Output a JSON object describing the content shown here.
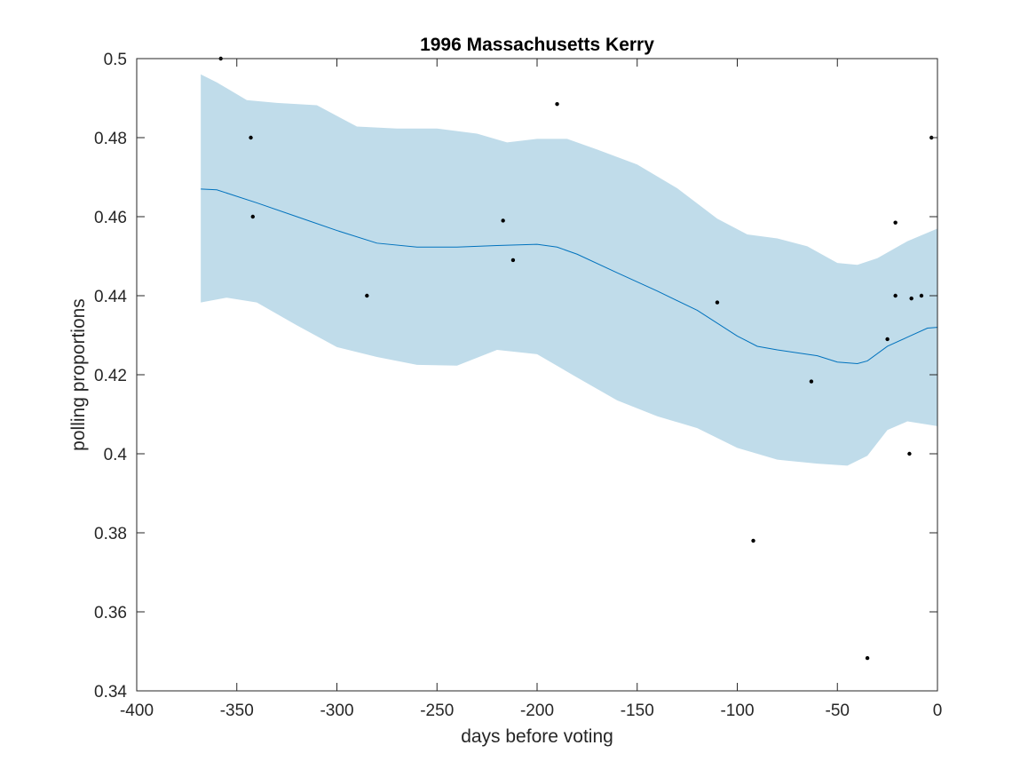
{
  "chart_data": {
    "type": "scatter",
    "title": "1996 Massachusetts Kerry",
    "xlabel": "days before voting",
    "ylabel": "polling proportions",
    "xlim": [
      -400,
      0
    ],
    "ylim": [
      0.34,
      0.5
    ],
    "xticks": [
      -400,
      -350,
      -300,
      -250,
      -200,
      -150,
      -100,
      -50,
      0
    ],
    "yticks": [
      0.34,
      0.36,
      0.38,
      0.4,
      0.42,
      0.44,
      0.46,
      0.48,
      0.5
    ],
    "grid": false,
    "legend": "none",
    "colors": {
      "band": "#c0dcea",
      "line": "#0072bd",
      "points": "#000000",
      "axes": "#262626"
    },
    "points": [
      {
        "x": -358,
        "y": 0.5
      },
      {
        "x": -343,
        "y": 0.48
      },
      {
        "x": -342,
        "y": 0.46
      },
      {
        "x": -285,
        "y": 0.44
      },
      {
        "x": -217,
        "y": 0.459
      },
      {
        "x": -212,
        "y": 0.449
      },
      {
        "x": -190,
        "y": 0.4885
      },
      {
        "x": -110,
        "y": 0.4383
      },
      {
        "x": -92,
        "y": 0.378
      },
      {
        "x": -63,
        "y": 0.4183
      },
      {
        "x": -35,
        "y": 0.3483
      },
      {
        "x": -25,
        "y": 0.429
      },
      {
        "x": -21,
        "y": 0.4585
      },
      {
        "x": -21,
        "y": 0.44
      },
      {
        "x": -14,
        "y": 0.4
      },
      {
        "x": -13,
        "y": 0.4393
      },
      {
        "x": -8,
        "y": 0.44
      },
      {
        "x": -3,
        "y": 0.48
      }
    ],
    "fit_line": [
      {
        "x": -368,
        "y": 0.467
      },
      {
        "x": -360,
        "y": 0.4668
      },
      {
        "x": -340,
        "y": 0.4635
      },
      {
        "x": -320,
        "y": 0.46
      },
      {
        "x": -300,
        "y": 0.4565
      },
      {
        "x": -280,
        "y": 0.4533
      },
      {
        "x": -260,
        "y": 0.4523
      },
      {
        "x": -240,
        "y": 0.4523
      },
      {
        "x": -220,
        "y": 0.4527
      },
      {
        "x": -200,
        "y": 0.453
      },
      {
        "x": -190,
        "y": 0.4523
      },
      {
        "x": -180,
        "y": 0.4505
      },
      {
        "x": -160,
        "y": 0.4458
      },
      {
        "x": -140,
        "y": 0.4412
      },
      {
        "x": -120,
        "y": 0.4363
      },
      {
        "x": -100,
        "y": 0.4298
      },
      {
        "x": -90,
        "y": 0.4272
      },
      {
        "x": -80,
        "y": 0.4263
      },
      {
        "x": -60,
        "y": 0.4248
      },
      {
        "x": -50,
        "y": 0.4232
      },
      {
        "x": -40,
        "y": 0.4228
      },
      {
        "x": -35,
        "y": 0.4235
      },
      {
        "x": -25,
        "y": 0.4272
      },
      {
        "x": -15,
        "y": 0.4295
      },
      {
        "x": -5,
        "y": 0.4318
      },
      {
        "x": 0,
        "y": 0.432
      }
    ],
    "band_upper": [
      {
        "x": -368,
        "y": 0.496
      },
      {
        "x": -360,
        "y": 0.494
      },
      {
        "x": -345,
        "y": 0.4895
      },
      {
        "x": -330,
        "y": 0.4888
      },
      {
        "x": -310,
        "y": 0.4882
      },
      {
        "x": -290,
        "y": 0.4828
      },
      {
        "x": -270,
        "y": 0.4823
      },
      {
        "x": -250,
        "y": 0.4823
      },
      {
        "x": -230,
        "y": 0.481
      },
      {
        "x": -215,
        "y": 0.4788
      },
      {
        "x": -200,
        "y": 0.4797
      },
      {
        "x": -185,
        "y": 0.4797
      },
      {
        "x": -170,
        "y": 0.477
      },
      {
        "x": -150,
        "y": 0.4732
      },
      {
        "x": -130,
        "y": 0.4672
      },
      {
        "x": -110,
        "y": 0.4595
      },
      {
        "x": -95,
        "y": 0.4555
      },
      {
        "x": -80,
        "y": 0.4545
      },
      {
        "x": -65,
        "y": 0.4525
      },
      {
        "x": -50,
        "y": 0.4483
      },
      {
        "x": -40,
        "y": 0.4478
      },
      {
        "x": -30,
        "y": 0.4495
      },
      {
        "x": -15,
        "y": 0.4538
      },
      {
        "x": 0,
        "y": 0.457
      }
    ],
    "band_lower": [
      {
        "x": -368,
        "y": 0.4383
      },
      {
        "x": -355,
        "y": 0.4395
      },
      {
        "x": -340,
        "y": 0.4383
      },
      {
        "x": -320,
        "y": 0.4325
      },
      {
        "x": -300,
        "y": 0.427
      },
      {
        "x": -280,
        "y": 0.4245
      },
      {
        "x": -260,
        "y": 0.4225
      },
      {
        "x": -240,
        "y": 0.4223
      },
      {
        "x": -220,
        "y": 0.4263
      },
      {
        "x": -200,
        "y": 0.4252
      },
      {
        "x": -180,
        "y": 0.4193
      },
      {
        "x": -160,
        "y": 0.4135
      },
      {
        "x": -140,
        "y": 0.4095
      },
      {
        "x": -120,
        "y": 0.4065
      },
      {
        "x": -100,
        "y": 0.4015
      },
      {
        "x": -80,
        "y": 0.3985
      },
      {
        "x": -60,
        "y": 0.3975
      },
      {
        "x": -45,
        "y": 0.397
      },
      {
        "x": -35,
        "y": 0.3995
      },
      {
        "x": -25,
        "y": 0.406
      },
      {
        "x": -15,
        "y": 0.4082
      },
      {
        "x": 0,
        "y": 0.407
      }
    ]
  }
}
